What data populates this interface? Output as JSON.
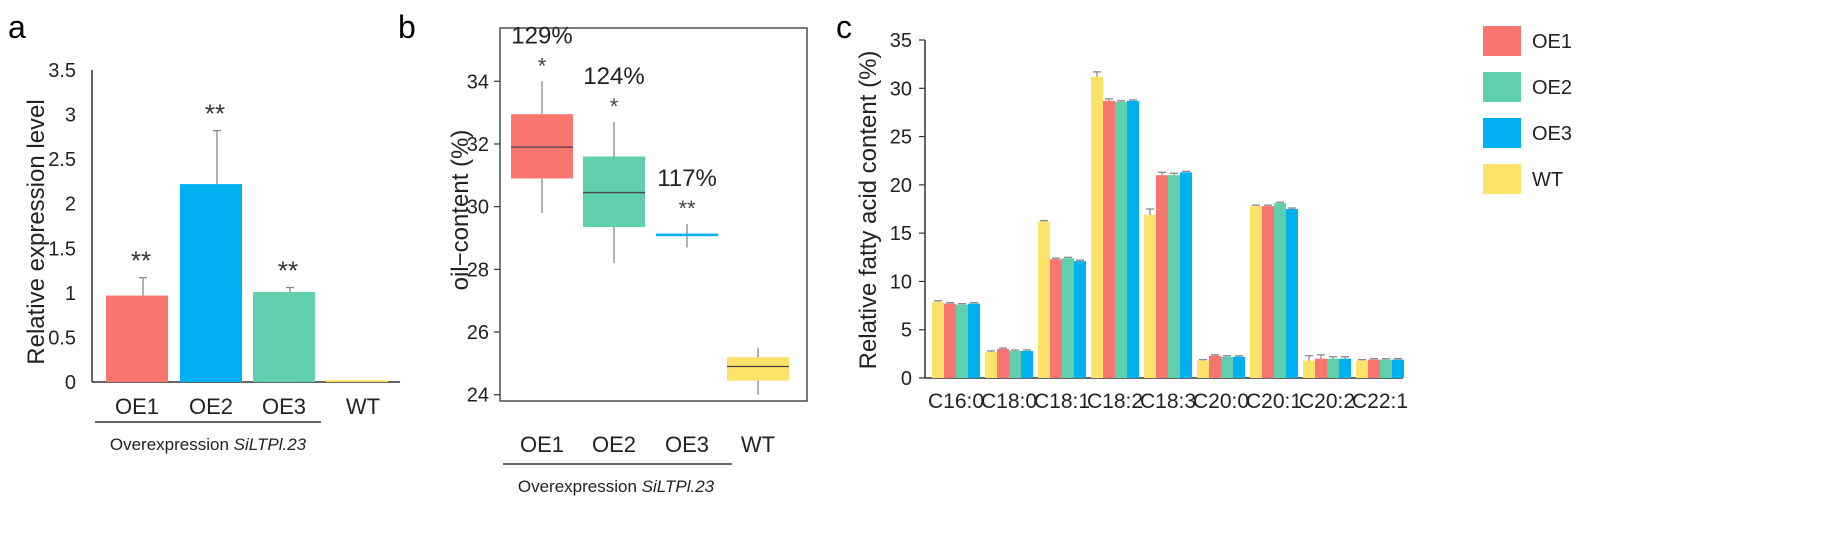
{
  "colors": {
    "OE1": "#f8766d",
    "OE2": "#5fcfad",
    "OE3": "#00b0f0",
    "WT": "#fde26a",
    "axis": "#333333",
    "tick_text": "#222222",
    "err": "#888888"
  },
  "chart_data": [
    {
      "id": "a",
      "panel_label": "a",
      "type": "bar",
      "ylabel": "Relative expression level",
      "yticks": [
        "0",
        "0.5",
        "1",
        "1.5",
        "2",
        "2.5",
        "3",
        "3.5"
      ],
      "ylim": [
        0,
        3.5
      ],
      "categories": [
        "OE1",
        "OE2",
        "OE3",
        "WT"
      ],
      "color_keys": [
        "OE1",
        "OE3",
        "OE2",
        "WT"
      ],
      "values": [
        0.97,
        2.22,
        1.01,
        0.01
      ],
      "errors": [
        0.2,
        0.6,
        0.05,
        0.01
      ],
      "annotations": [
        "**",
        "**",
        "**",
        ""
      ],
      "group_label": {
        "prefix": "Overexpression ",
        "italic": "SiLTPl.23"
      }
    },
    {
      "id": "b",
      "panel_label": "b",
      "type": "box",
      "ylabel": "oil−content (%)",
      "yticks": [
        "24",
        "26",
        "28",
        "30",
        "32",
        "34"
      ],
      "ylim": [
        23.8,
        35.7
      ],
      "categories": [
        "OE1",
        "OE2",
        "OE3",
        "WT"
      ],
      "color_keys": [
        "OE1",
        "OE2",
        "OE3",
        "WT"
      ],
      "boxes": [
        {
          "min": 29.8,
          "q1": 30.9,
          "median": 31.9,
          "q3": 32.95,
          "max": 34.0
        },
        {
          "min": 28.2,
          "q1": 29.35,
          "median": 30.45,
          "q3": 31.6,
          "max": 32.7
        },
        {
          "min": 28.7,
          "q1": 29.1,
          "median": 29.1,
          "q3": 29.1,
          "max": 29.45
        },
        {
          "min": 24.0,
          "q1": 24.45,
          "median": 24.9,
          "q3": 25.2,
          "max": 25.5
        }
      ],
      "percent_labels": [
        "129%",
        "124%",
        "117%",
        ""
      ],
      "annotations": [
        "*",
        "*",
        "**",
        ""
      ],
      "group_label": {
        "prefix": "Overexpression ",
        "italic": "SiLTPl.23"
      }
    },
    {
      "id": "c",
      "panel_label": "c",
      "type": "bar",
      "ylabel": "Relative fatty acid content (%)",
      "yticks": [
        "0",
        "5",
        "10",
        "15",
        "20",
        "25",
        "30",
        "35"
      ],
      "ylim": [
        0,
        35
      ],
      "categories": [
        "C16:0",
        "C18:0",
        "C18:1",
        "C18:2",
        "C18:3",
        "C20:0",
        "C20:1",
        "C20:2",
        "C22:1"
      ],
      "legend_position": "top-right",
      "series": [
        {
          "name": "WT",
          "values": [
            7.9,
            2.7,
            16.2,
            31.2,
            16.9,
            1.8,
            17.8,
            1.8,
            1.8
          ],
          "errors": [
            0.1,
            0.1,
            0.1,
            0.5,
            0.6,
            0.1,
            0.1,
            0.5,
            0.1
          ]
        },
        {
          "name": "OE1",
          "values": [
            7.7,
            3.0,
            12.3,
            28.7,
            21.0,
            2.3,
            17.8,
            2.0,
            1.9
          ],
          "errors": [
            0.1,
            0.1,
            0.1,
            0.2,
            0.3,
            0.1,
            0.1,
            0.4,
            0.1
          ]
        },
        {
          "name": "OE2",
          "values": [
            7.6,
            2.8,
            12.4,
            28.6,
            21.0,
            2.2,
            18.1,
            2.0,
            1.9
          ],
          "errors": [
            0.1,
            0.1,
            0.1,
            0.1,
            0.2,
            0.1,
            0.1,
            0.2,
            0.1
          ]
        },
        {
          "name": "OE3",
          "values": [
            7.7,
            2.8,
            12.1,
            28.7,
            21.3,
            2.2,
            17.5,
            2.0,
            1.9
          ],
          "errors": [
            0.1,
            0.1,
            0.1,
            0.1,
            0.1,
            0.1,
            0.1,
            0.2,
            0.1
          ]
        }
      ],
      "legend_items": [
        "OE1",
        "OE2",
        "OE3",
        "WT"
      ]
    }
  ]
}
